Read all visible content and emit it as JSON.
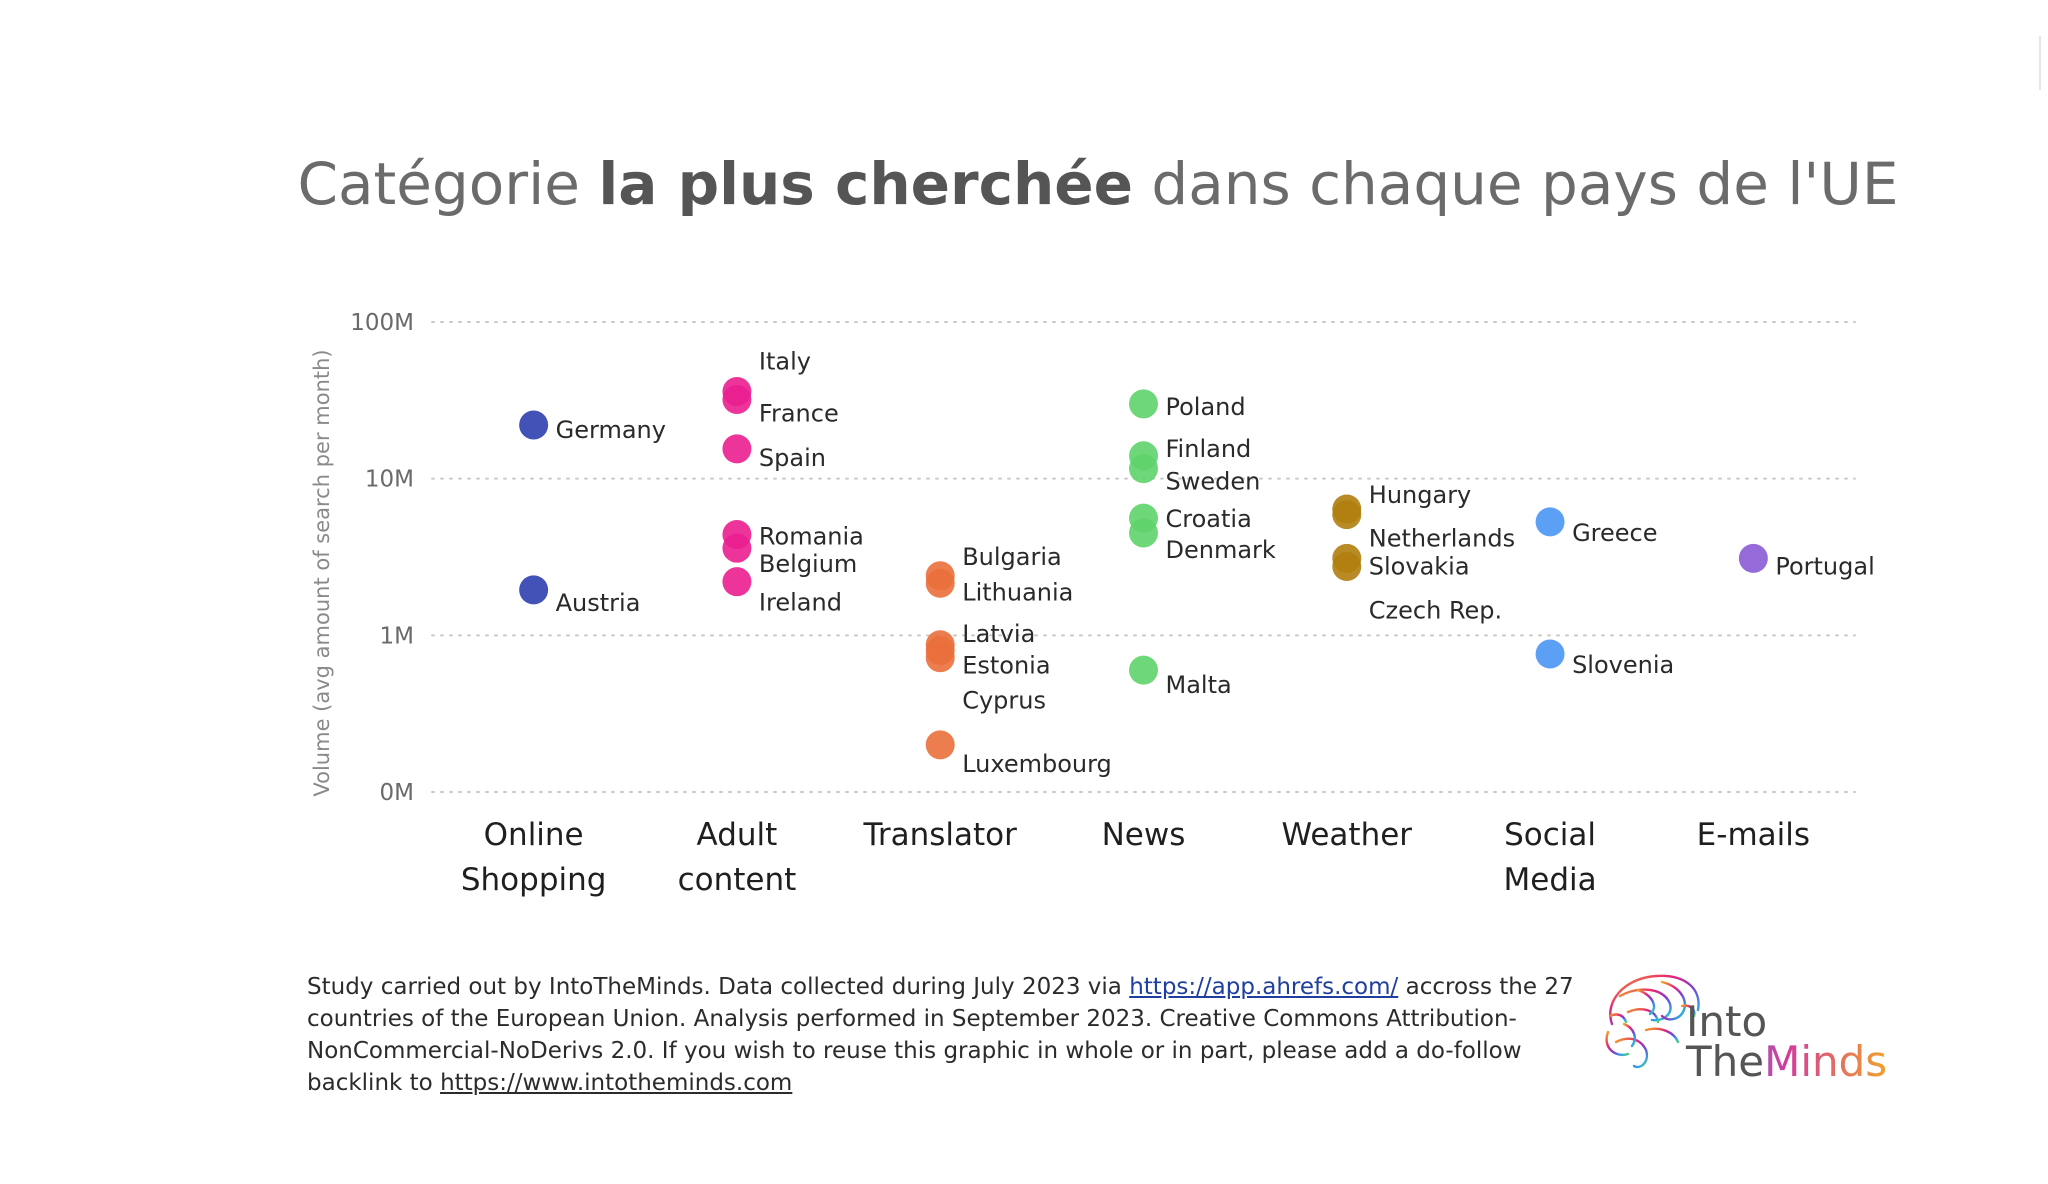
{
  "title": {
    "prefix": "Catégorie ",
    "bold": "la plus cherchée",
    "suffix": " dans chaque pays de l'UE"
  },
  "chart_data": {
    "type": "scatter",
    "y_scale": "log",
    "ylabel": "Volume (avg amount of search per month)",
    "y_ticks": [
      "0M",
      "1M",
      "10M",
      "100M"
    ],
    "y_tick_values": [
      100000,
      1000000,
      10000000,
      100000000
    ],
    "grid": "horizontal dotted",
    "categories": [
      {
        "label": [
          "Online",
          "Shopping"
        ],
        "color": "#2d3fae"
      },
      {
        "label": [
          "Adult",
          "content"
        ],
        "color": "#ea1e8f"
      },
      {
        "label": [
          "Translator"
        ],
        "color": "#ea6f3c"
      },
      {
        "label": [
          "News"
        ],
        "color": "#5ed36a"
      },
      {
        "label": [
          "Weather"
        ],
        "color": "#b07e0e"
      },
      {
        "label": [
          "Social",
          "Media"
        ],
        "color": "#4a96f5"
      },
      {
        "label": [
          "E-mails"
        ],
        "color": "#8a5bd6"
      }
    ],
    "points": [
      {
        "country": "Germany",
        "category": 0,
        "value": 22000000
      },
      {
        "country": "Austria",
        "category": 0,
        "value": 1950000
      },
      {
        "country": "Italy",
        "category": 1,
        "value": 36000000
      },
      {
        "country": "France",
        "category": 1,
        "value": 32000000
      },
      {
        "country": "Spain",
        "category": 1,
        "value": 15500000
      },
      {
        "country": "Romania",
        "category": 1,
        "value": 4400000
      },
      {
        "country": "Belgium",
        "category": 1,
        "value": 3600000
      },
      {
        "country": "Ireland",
        "category": 1,
        "value": 2200000
      },
      {
        "country": "Bulgaria",
        "category": 2,
        "value": 2400000
      },
      {
        "country": "Lithuania",
        "category": 2,
        "value": 2150000
      },
      {
        "country": "Latvia",
        "category": 2,
        "value": 870000
      },
      {
        "country": "Estonia",
        "category": 2,
        "value": 800000
      },
      {
        "country": "Cyprus",
        "category": 2,
        "value": 720000
      },
      {
        "country": "Luxembourg",
        "category": 2,
        "value": 200000
      },
      {
        "country": "Poland",
        "category": 3,
        "value": 30000000
      },
      {
        "country": "Finland",
        "category": 3,
        "value": 14000000
      },
      {
        "country": "Sweden",
        "category": 3,
        "value": 11600000
      },
      {
        "country": "Croatia",
        "category": 3,
        "value": 5600000
      },
      {
        "country": "Denmark",
        "category": 3,
        "value": 4500000
      },
      {
        "country": "Malta",
        "category": 3,
        "value": 600000
      },
      {
        "country": "Hungary",
        "category": 4,
        "value": 6400000
      },
      {
        "country": "Netherlands",
        "category": 4,
        "value": 5900000
      },
      {
        "country": "Slovakia",
        "category": 4,
        "value": 3100000
      },
      {
        "country": "Czech Rep.",
        "category": 4,
        "value": 2750000
      },
      {
        "country": "Greece",
        "category": 5,
        "value": 5300000
      },
      {
        "country": "Slovenia",
        "category": 5,
        "value": 760000
      },
      {
        "country": "Portugal",
        "category": 6,
        "value": 3100000
      }
    ]
  },
  "footnote": {
    "part1": "Study carried out by IntoTheMinds. Data collected during July 2023 via ",
    "link1": "https://app.ahrefs.com/",
    "part2": " accross the 27 countries of the European Union. Analysis performed in September 2023. Creative Commons Attribution-NonCommercial-NoDerivs 2.0. If you wish to reuse this graphic in whole or in part, please add a do-follow backlink to ",
    "link2": "https://www.intotheminds.com"
  },
  "logo": {
    "line1": "Into",
    "line2_a": "The",
    "line2_b": "Minds"
  }
}
